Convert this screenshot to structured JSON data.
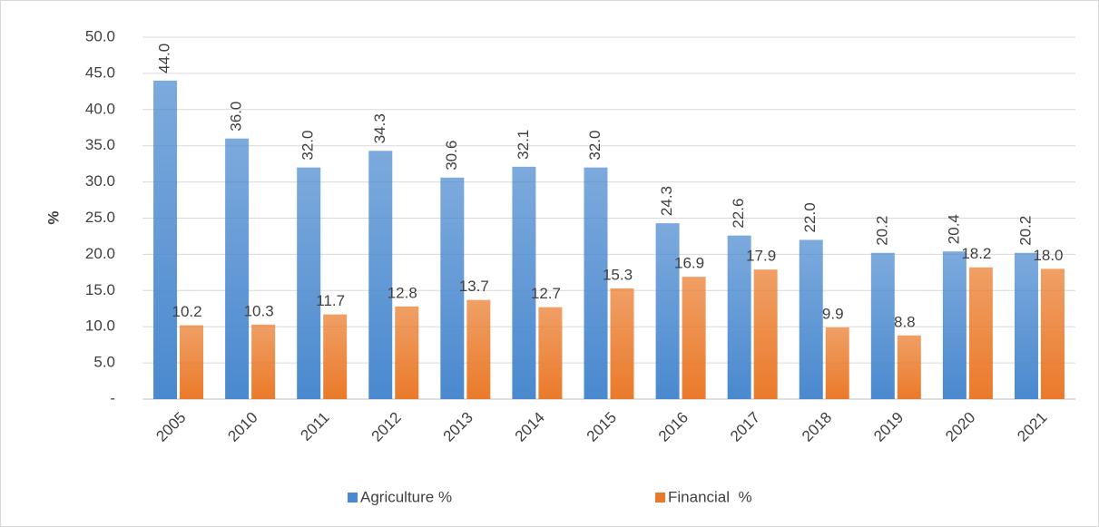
{
  "chart_data": {
    "type": "bar",
    "y_label": "%",
    "categories": [
      "2005",
      "2010",
      "2011",
      "2012",
      "2013",
      "2014",
      "2015",
      "2016",
      "2017",
      "2018",
      "2019",
      "2020",
      "2021"
    ],
    "series": [
      {
        "name": "Agriculture %",
        "color": "#4a89cf",
        "values": [
          44.0,
          36.0,
          32.0,
          34.3,
          30.6,
          32.1,
          32.0,
          24.3,
          22.6,
          22.0,
          20.2,
          20.4,
          20.2
        ],
        "value_labels": [
          "44.0",
          "36.0",
          "32.0",
          "34.3",
          "30.6",
          "32.1",
          "32.0",
          "24.3",
          "22.6",
          "22.0",
          "20.2",
          "20.4",
          "20.2"
        ]
      },
      {
        "name": "Financial  %",
        "color": "#ea7a2a",
        "values": [
          10.2,
          10.3,
          11.7,
          12.8,
          13.7,
          12.7,
          15.3,
          16.9,
          17.9,
          9.9,
          8.8,
          18.2,
          18.0
        ],
        "value_labels": [
          "10.2",
          "10.3",
          "11.7",
          "12.8",
          "13.7",
          "12.7",
          "15.3",
          "16.9",
          "17.9",
          "9.9",
          "8.8",
          "18.2",
          "18.0"
        ]
      }
    ],
    "ylim": [
      0,
      50
    ],
    "yticks": [
      {
        "value": 0,
        "label": "-"
      },
      {
        "value": 5,
        "label": "5.0"
      },
      {
        "value": 10,
        "label": "10.0"
      },
      {
        "value": 15,
        "label": "15.0"
      },
      {
        "value": 20,
        "label": "20.0"
      },
      {
        "value": 25,
        "label": "25.0"
      },
      {
        "value": 30,
        "label": "30.0"
      },
      {
        "value": 35,
        "label": "35.0"
      },
      {
        "value": 40,
        "label": "40.0"
      },
      {
        "value": 45,
        "label": "45.0"
      },
      {
        "value": 50,
        "label": "50.0"
      }
    ],
    "grid": true,
    "legend": "bottom"
  }
}
